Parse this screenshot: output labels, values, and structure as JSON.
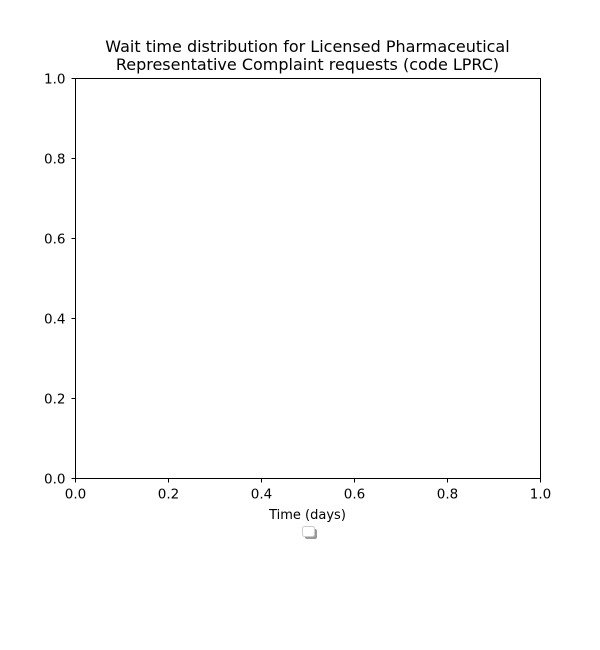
{
  "chart_data": {
    "type": "bar",
    "title_lines": [
      "Wait time distribution  for Licensed Pharmaceutical",
      "Representative Complaint  requests (code LPRC)"
    ],
    "xlabel": "Time (days)",
    "ylabel": "",
    "xlim": [
      0.0,
      1.0
    ],
    "ylim": [
      0.0,
      1.0
    ],
    "x_ticks": [
      "0.0",
      "0.2",
      "0.4",
      "0.6",
      "0.8",
      "1.0"
    ],
    "y_ticks": [
      "0.0",
      "0.2",
      "0.4",
      "0.6",
      "0.8",
      "1.0"
    ],
    "categories": [],
    "series": [],
    "grid": false,
    "legend": {
      "placement": "below-plot",
      "entries": []
    }
  }
}
